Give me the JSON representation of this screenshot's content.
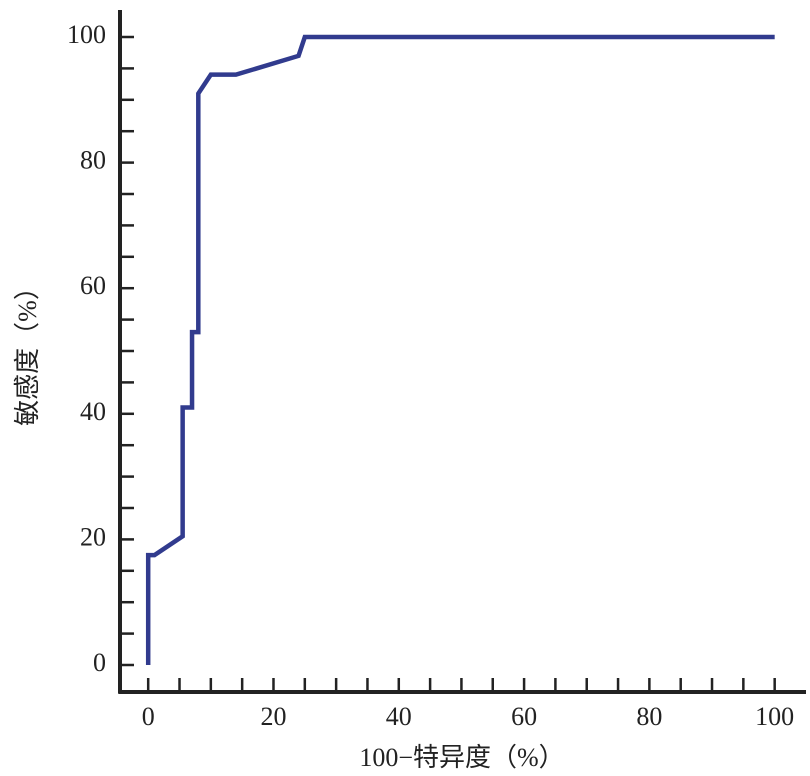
{
  "chart_data": {
    "type": "line",
    "xlabel": "100−特异度（%）",
    "ylabel": "敏感度（%）",
    "x": [
      0,
      0,
      1,
      5.5,
      5.5,
      7,
      7,
      8,
      8,
      10,
      14,
      24,
      25,
      100
    ],
    "series": [
      {
        "color": "#313b8e",
        "values": [
          0,
          17.5,
          17.5,
          20.5,
          41,
          41,
          53,
          53,
          91,
          94,
          94,
          97,
          100,
          100
        ]
      }
    ],
    "xlim": [
      -4.5,
      105
    ],
    "ylim": [
      -4.3,
      104.3
    ],
    "xticks": [
      0,
      20,
      40,
      60,
      80,
      100
    ],
    "yticks": [
      0,
      20,
      40,
      60,
      80,
      100
    ],
    "xminorticks": [
      5,
      10,
      15,
      25,
      30,
      35,
      45,
      50,
      55,
      65,
      70,
      75,
      85,
      90,
      95
    ],
    "yminorticks": [
      5,
      10,
      15,
      25,
      30,
      35,
      45,
      50,
      55,
      65,
      70,
      75,
      85,
      90,
      95
    ]
  }
}
